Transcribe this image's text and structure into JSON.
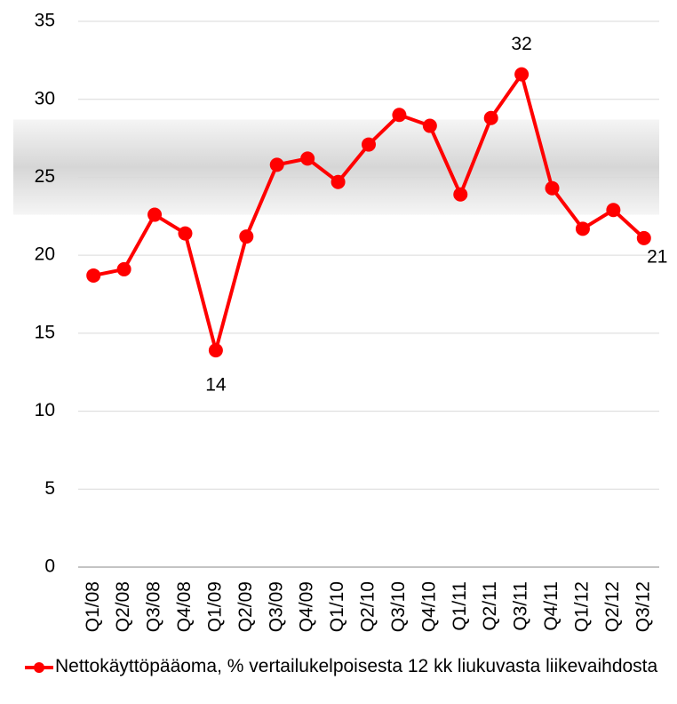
{
  "chart_data": {
    "type": "line",
    "categories": [
      "Q1/08",
      "Q2/08",
      "Q3/08",
      "Q4/08",
      "Q1/09",
      "Q2/09",
      "Q3/09",
      "Q4/09",
      "Q1/10",
      "Q2/10",
      "Q3/10",
      "Q4/10",
      "Q1/11",
      "Q2/11",
      "Q3/11",
      "Q4/11",
      "Q1/12",
      "Q2/12",
      "Q3/12"
    ],
    "series": [
      {
        "name": "Nettokäyttöpääoma, % vertailukelpoisesta 12 kk liukuvasta liikevaihdosta",
        "color": "#ff0000",
        "values": [
          18.7,
          19.1,
          22.6,
          21.4,
          13.9,
          21.2,
          25.8,
          26.2,
          24.7,
          27.1,
          29.0,
          28.3,
          23.9,
          28.8,
          31.6,
          24.3,
          21.7,
          22.9,
          21.1
        ],
        "value_labels": [
          null,
          null,
          null,
          null,
          "14",
          null,
          null,
          null,
          null,
          null,
          null,
          null,
          null,
          null,
          "32",
          null,
          null,
          null,
          "21"
        ]
      }
    ],
    "shaded_range": [
      22.6,
      28.7
    ],
    "ylim": [
      0,
      35
    ],
    "yticks": [
      0,
      5,
      10,
      15,
      20,
      25,
      30,
      35
    ],
    "grid": true,
    "legend": "bottom"
  }
}
